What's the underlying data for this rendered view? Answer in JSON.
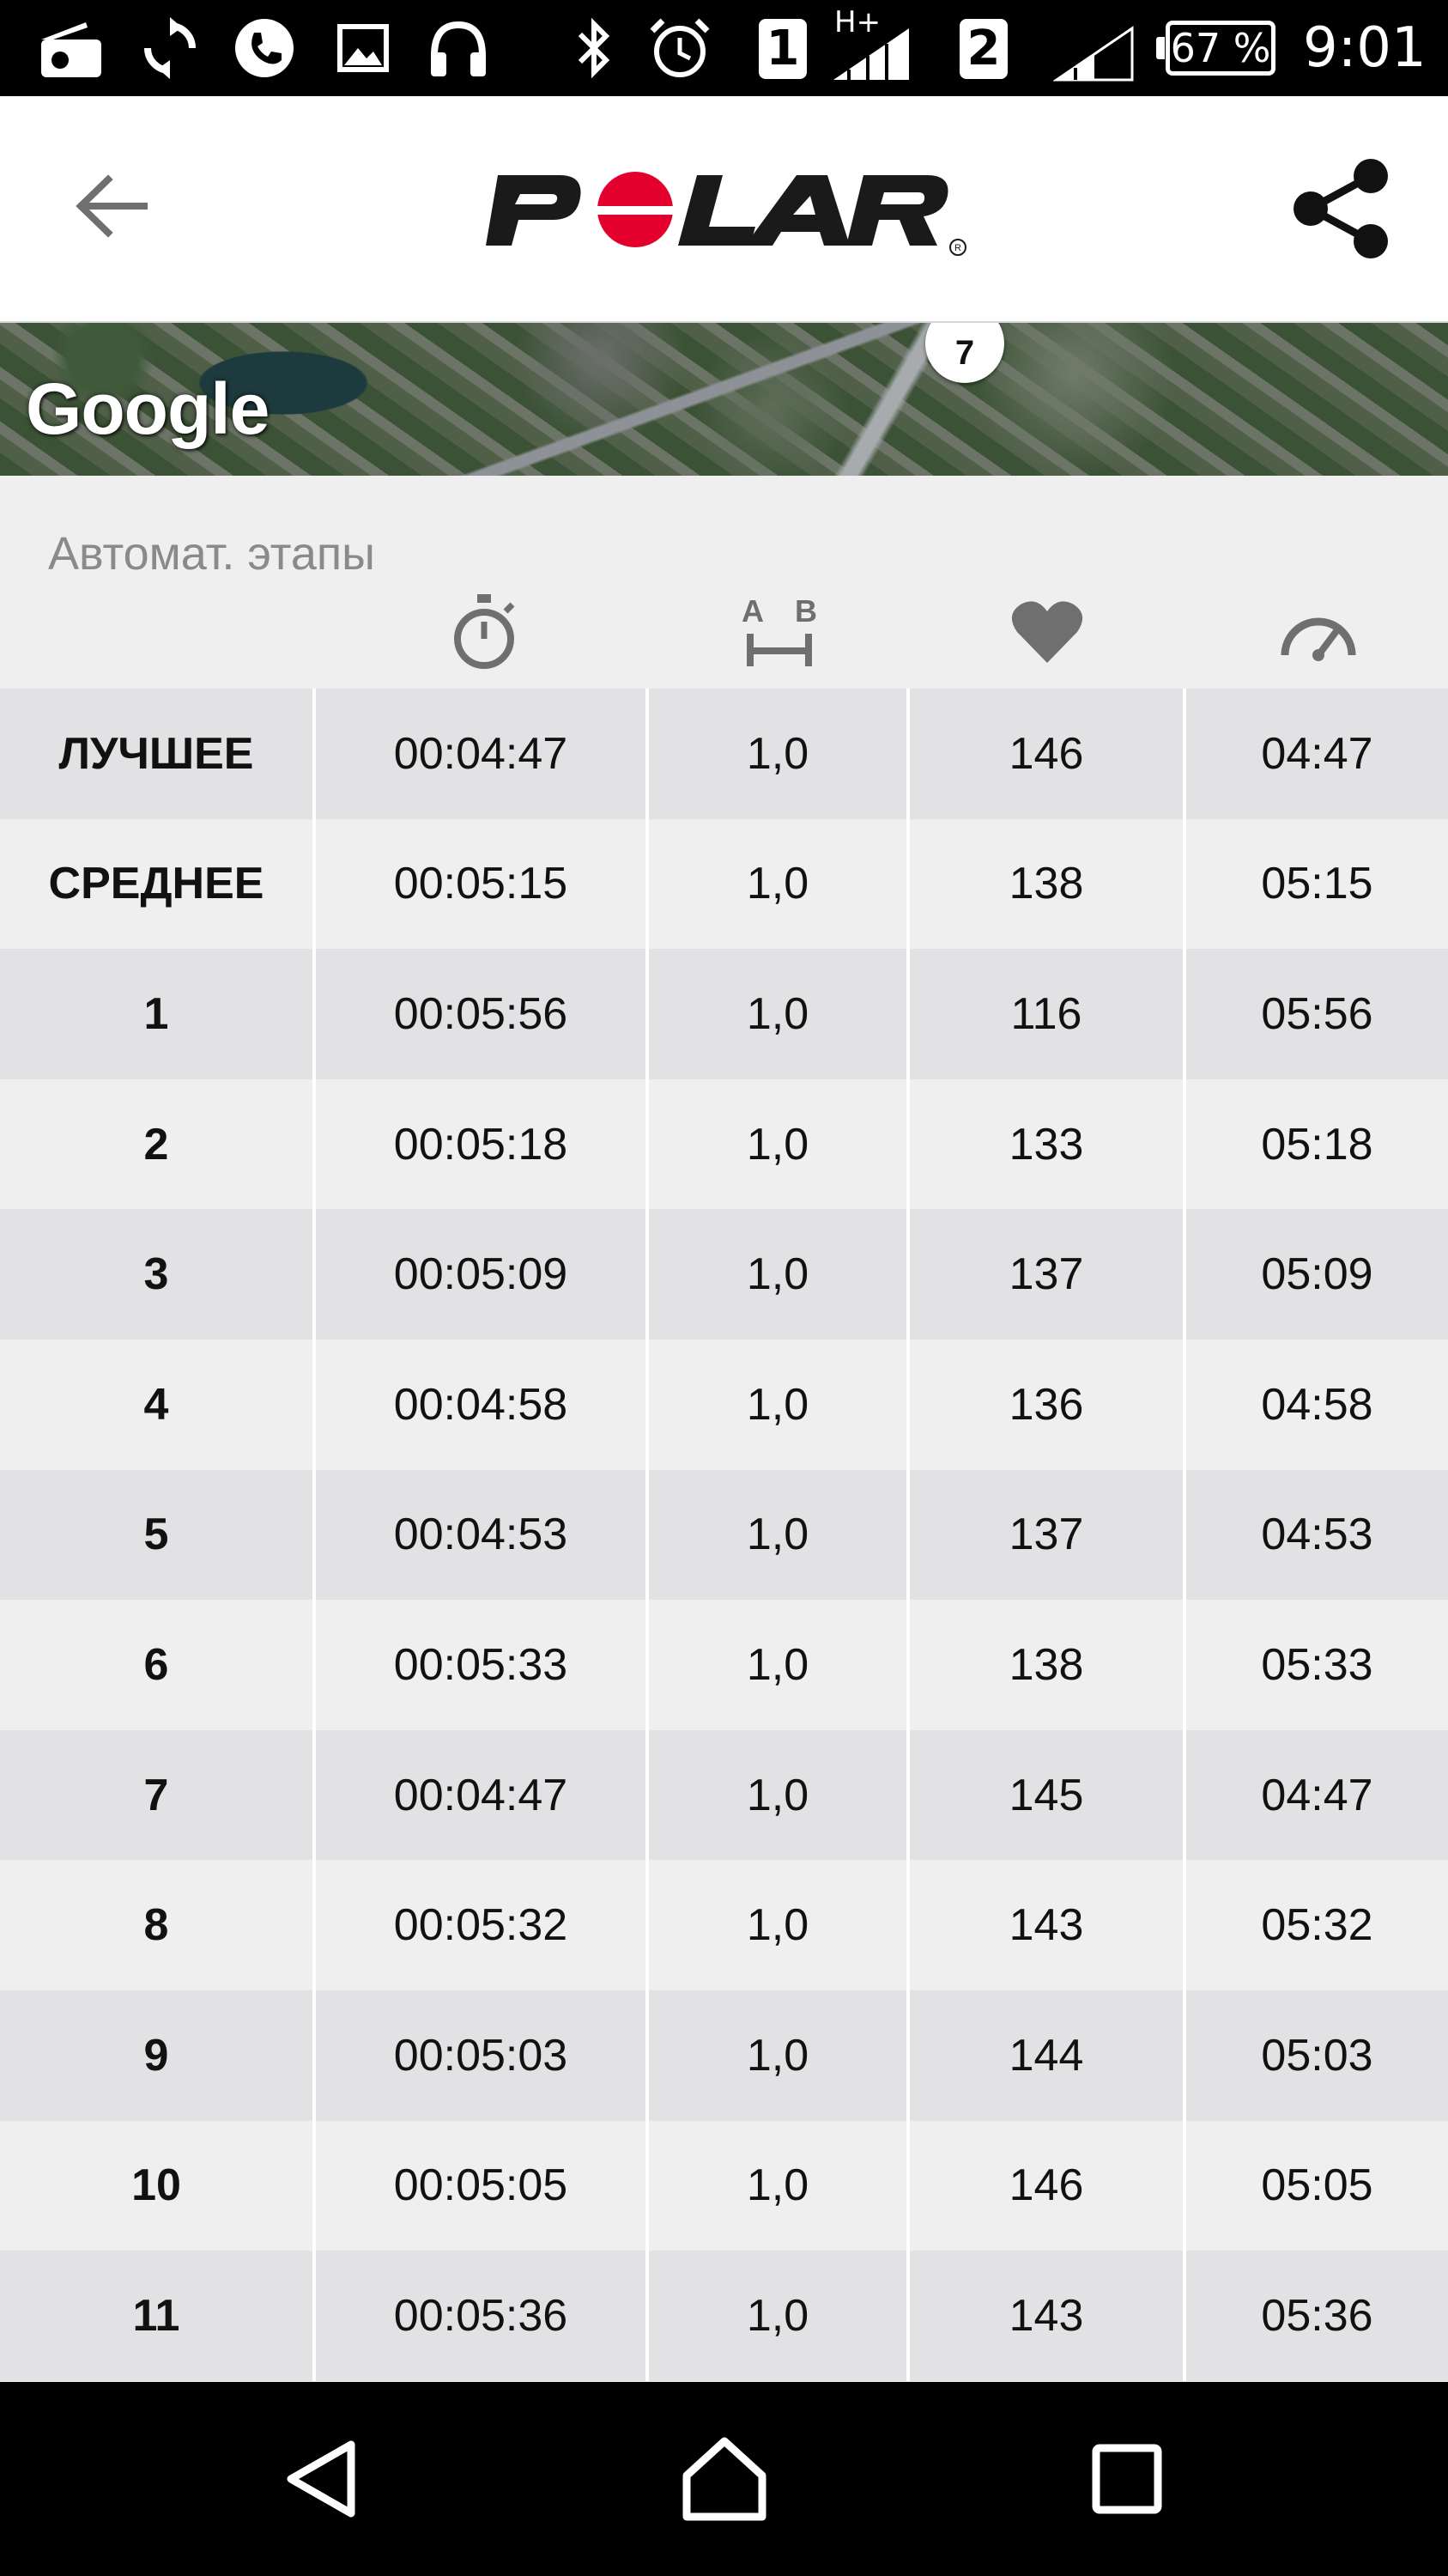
{
  "status_bar": {
    "sim1": "1",
    "sim2": "2",
    "network_type": "H+",
    "battery": "67 %",
    "time": "9:01",
    "icons": [
      "radio-icon",
      "sync-icon",
      "phone-icon",
      "image-icon",
      "headphones-icon",
      "bluetooth-icon",
      "alarm-icon",
      "signal-icon"
    ]
  },
  "app_bar": {
    "logo": "POLAR",
    "back_icon": "arrow-back-icon",
    "share_icon": "share-icon"
  },
  "map": {
    "attribution": "Google",
    "marker_label": "7"
  },
  "laps": {
    "title": "Автомат. этапы",
    "column_icons": [
      "stopwatch-icon",
      "distance-icon",
      "heart-icon",
      "speedometer-icon"
    ],
    "rows": [
      {
        "label": "ЛУЧШЕЕ",
        "time": "00:04:47",
        "distance": "1,0",
        "hr": "146",
        "pace": "04:47"
      },
      {
        "label": "СРЕДНЕЕ",
        "time": "00:05:15",
        "distance": "1,0",
        "hr": "138",
        "pace": "05:15"
      },
      {
        "label": "1",
        "time": "00:05:56",
        "distance": "1,0",
        "hr": "116",
        "pace": "05:56"
      },
      {
        "label": "2",
        "time": "00:05:18",
        "distance": "1,0",
        "hr": "133",
        "pace": "05:18"
      },
      {
        "label": "3",
        "time": "00:05:09",
        "distance": "1,0",
        "hr": "137",
        "pace": "05:09"
      },
      {
        "label": "4",
        "time": "00:04:58",
        "distance": "1,0",
        "hr": "136",
        "pace": "04:58"
      },
      {
        "label": "5",
        "time": "00:04:53",
        "distance": "1,0",
        "hr": "137",
        "pace": "04:53"
      },
      {
        "label": "6",
        "time": "00:05:33",
        "distance": "1,0",
        "hr": "138",
        "pace": "05:33"
      },
      {
        "label": "7",
        "time": "00:04:47",
        "distance": "1,0",
        "hr": "145",
        "pace": "04:47"
      },
      {
        "label": "8",
        "time": "00:05:32",
        "distance": "1,0",
        "hr": "143",
        "pace": "05:32"
      },
      {
        "label": "9",
        "time": "00:05:03",
        "distance": "1,0",
        "hr": "144",
        "pace": "05:03"
      },
      {
        "label": "10",
        "time": "00:05:05",
        "distance": "1,0",
        "hr": "146",
        "pace": "05:05"
      },
      {
        "label": "11",
        "time": "00:05:36",
        "distance": "1,0",
        "hr": "143",
        "pace": "05:36"
      }
    ]
  },
  "nav_bar": {
    "icons": [
      "nav-back-icon",
      "nav-home-icon",
      "nav-recents-icon"
    ]
  },
  "colors": {
    "brand_red": "#e3002c",
    "row_dark": "#e2e2e5",
    "row_light": "#efeff0",
    "icon_gray": "#6f6f6f"
  }
}
